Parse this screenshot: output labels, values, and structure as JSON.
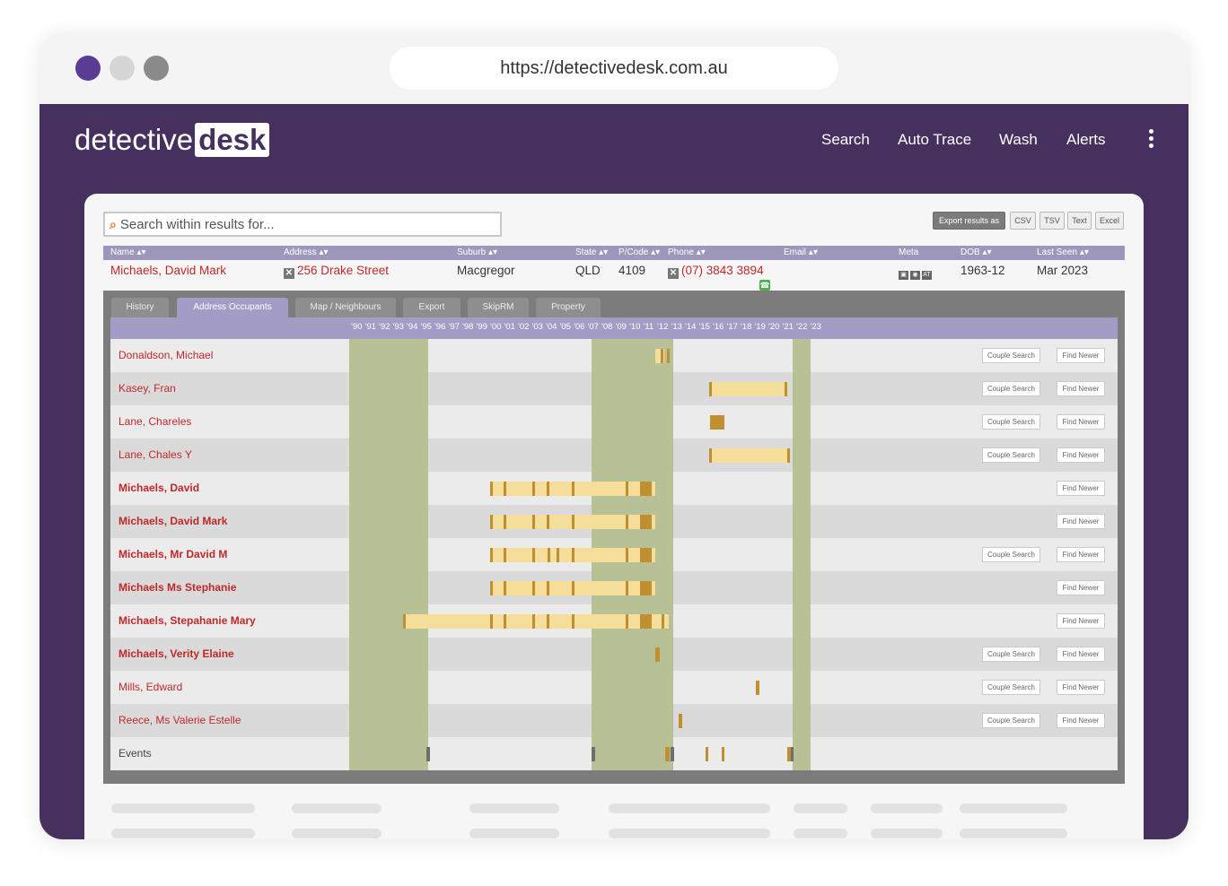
{
  "browser": {
    "url": "https://detectivedesk.com.au",
    "window_dots": [
      "#5b3c94",
      "#d6d6d6",
      "#8a8a8a"
    ]
  },
  "app": {
    "logo_part1": "detective",
    "logo_part2": "desk",
    "nav": [
      "Search",
      "Auto Trace",
      "Wash",
      "Alerts"
    ],
    "brand_color": "#46305e",
    "menu_icon": "kebab-menu-icon"
  },
  "toolbar": {
    "search_placeholder": "Search within results for...",
    "export_label": "Export results as",
    "export_formats": [
      "CSV",
      "TSV",
      "Text",
      "Excel"
    ]
  },
  "results_table": {
    "columns": [
      "Name",
      "Address",
      "Suburb",
      "State",
      "P/Code",
      "Phone",
      "Email",
      "Meta",
      "DOB",
      "Last Seen"
    ],
    "record": {
      "name": "Michaels, David Mark",
      "address": "256 Drake Street",
      "suburb": "Macgregor",
      "state": "QLD",
      "postcode": "4109",
      "phone": "(07) 3843 3894",
      "email": "",
      "meta_icons": [
        "photo-icon",
        "pin-icon",
        "at-icon"
      ],
      "meta_at_label": "AT",
      "dob": "1963-12",
      "last_seen": "Mar 2023"
    }
  },
  "timeline": {
    "tabs": [
      "History",
      "Address Occupants",
      "Map / Neighbours",
      "Export",
      "SkipRM",
      "Property"
    ],
    "active_tab": "Address Occupants",
    "years": [
      "'90",
      "'91",
      "'92",
      "'93",
      "'94",
      "'95",
      "'96",
      "'97",
      "'98",
      "'99",
      "'00",
      "'01",
      "'02",
      "'03",
      "'04",
      "'05",
      "'06",
      "'07",
      "'08",
      "'09",
      "'10",
      "'11",
      "'12",
      "'13",
      "'14",
      "'15",
      "'16",
      "'17",
      "'18",
      "'19",
      "'20",
      "'21",
      "'22",
      "'23"
    ],
    "button_labels": {
      "couple": "Couple Search",
      "newer": "Find Newer"
    },
    "occupants": [
      {
        "name": "Donaldson, Michael",
        "bold": false,
        "couple": true,
        "newer": true
      },
      {
        "name": "Kasey, Fran",
        "bold": false,
        "couple": true,
        "newer": true
      },
      {
        "name": "Lane, Chareles",
        "bold": false,
        "couple": true,
        "newer": true
      },
      {
        "name": "Lane, Chales Y",
        "bold": false,
        "couple": true,
        "newer": true
      },
      {
        "name": "Michaels, David",
        "bold": true,
        "couple": false,
        "newer": true
      },
      {
        "name": "Michaels, David Mark",
        "bold": true,
        "couple": false,
        "newer": true
      },
      {
        "name": "Michaels, Mr David M",
        "bold": true,
        "couple": true,
        "newer": true
      },
      {
        "name": "Michaels Ms Stephanie",
        "bold": true,
        "couple": false,
        "newer": true
      },
      {
        "name": "Michaels, Stepahanie Mary",
        "bold": true,
        "couple": false,
        "newer": true
      },
      {
        "name": "Michaels, Verity Elaine",
        "bold": true,
        "couple": true,
        "newer": true
      },
      {
        "name": "Mills, Edward",
        "bold": false,
        "couple": true,
        "newer": true
      },
      {
        "name": "Reece, Ms Valerie Estelle",
        "bold": false,
        "couple": true,
        "newer": true
      },
      {
        "name": "Events",
        "bold": false,
        "couple": false,
        "newer": false,
        "events": true
      }
    ],
    "colors": {
      "highlight_band": "#b8c195",
      "presence": "#f5dd9a",
      "marker": "#c09030",
      "event": "#6e6e6e"
    }
  }
}
